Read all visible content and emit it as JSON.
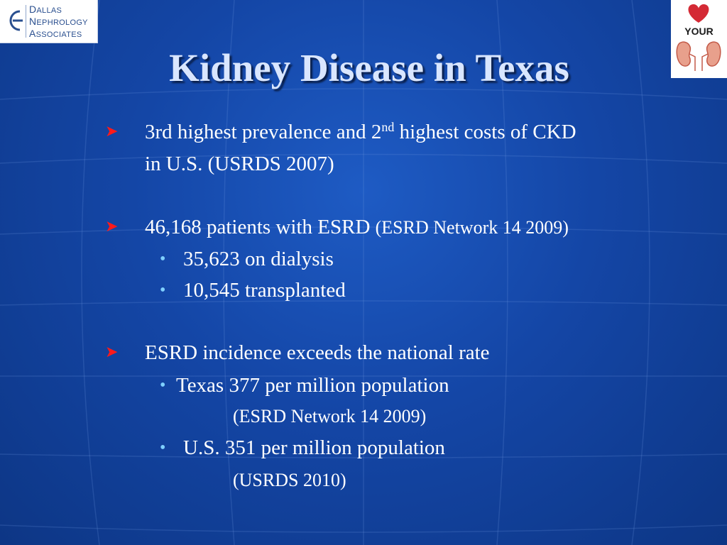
{
  "logos": {
    "dna": {
      "line1_cap": "D",
      "line1": "ALLAS",
      "line2_cap": "N",
      "line2": "EPHROLOGY",
      "line3_cap": "A",
      "line3": "SSOCIATES"
    },
    "kidney": {
      "text": "YOUR"
    }
  },
  "slide": {
    "title": "Kidney Disease in Texas",
    "bullets": [
      {
        "a": "3rd highest prevalence and 2",
        "sup": "nd",
        "b": " highest costs of CKD",
        "line2": "in U.S. (USRDS 2007)"
      },
      {
        "text": "46,168 patients with ESRD",
        "source": "(ESRD Network 14 2009)",
        "sub": [
          "35,623 on dialysis",
          "10,545 transplanted"
        ]
      },
      {
        "text": "ESRD incidence exceeds the national rate",
        "sub": [
          {
            "text": "Texas 377 per million population",
            "source": "(ESRD Network 14 2009)"
          },
          {
            "text": "U.S. 351 per million population",
            "source": "(USRDS 2010)"
          }
        ]
      }
    ]
  },
  "colors": {
    "background": "#1446a6",
    "title": "#d9e6ff",
    "arrow": "#ff1a1a",
    "dot": "#7fd0ff"
  }
}
